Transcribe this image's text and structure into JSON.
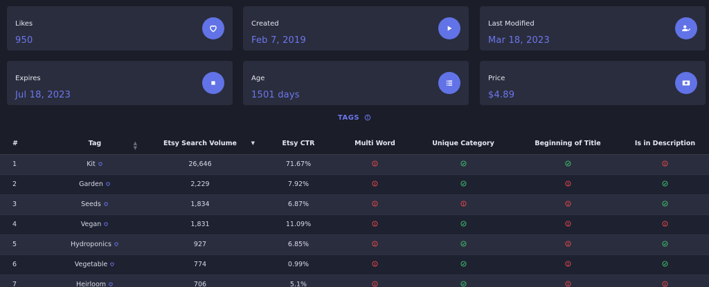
{
  "cards": [
    {
      "label": "Likes",
      "value": "950",
      "icon": "heart-icon"
    },
    {
      "label": "Created",
      "value": "Feb 7, 2019",
      "icon": "play-icon"
    },
    {
      "label": "Last Modified",
      "value": "Mar 18, 2023",
      "icon": "user-check-icon"
    },
    {
      "label": "Expires",
      "value": "Jul 18, 2023",
      "icon": "stop-icon"
    },
    {
      "label": "Age",
      "value": "1501 days",
      "icon": "list-icon"
    },
    {
      "label": "Price",
      "value": "$4.89",
      "icon": "money-icon"
    }
  ],
  "tags_section": {
    "title": "TAGS",
    "icon": "info-icon"
  },
  "table": {
    "columns": [
      "#",
      "Tag",
      "Etsy Search Volume",
      "Etsy CTR",
      "Multi Word",
      "Unique Category",
      "Beginning of Title",
      "Is in Description"
    ],
    "rows": [
      {
        "num": "1",
        "tag": "Kit",
        "volume": "26,646",
        "ctr": "71.67%",
        "multi": false,
        "unique": true,
        "begin": true,
        "desc": false
      },
      {
        "num": "2",
        "tag": "Garden",
        "volume": "2,229",
        "ctr": "7.92%",
        "multi": false,
        "unique": true,
        "begin": false,
        "desc": true
      },
      {
        "num": "3",
        "tag": "Seeds",
        "volume": "1,834",
        "ctr": "6.87%",
        "multi": false,
        "unique": false,
        "begin": false,
        "desc": true
      },
      {
        "num": "4",
        "tag": "Vegan",
        "volume": "1,831",
        "ctr": "11.09%",
        "multi": false,
        "unique": true,
        "begin": false,
        "desc": false
      },
      {
        "num": "5",
        "tag": "Hydroponics",
        "volume": "927",
        "ctr": "6.85%",
        "multi": false,
        "unique": true,
        "begin": false,
        "desc": true
      },
      {
        "num": "6",
        "tag": "Vegetable",
        "volume": "774",
        "ctr": "0.99%",
        "multi": false,
        "unique": true,
        "begin": false,
        "desc": true
      },
      {
        "num": "7",
        "tag": "Heirloom",
        "volume": "706",
        "ctr": "5.1%",
        "multi": false,
        "unique": true,
        "begin": false,
        "desc": false
      }
    ]
  },
  "colors": {
    "accent": "#6c77ee",
    "icon_bg": "#6173e6",
    "ok": "#3fbf6f",
    "bad": "#e5484d"
  }
}
